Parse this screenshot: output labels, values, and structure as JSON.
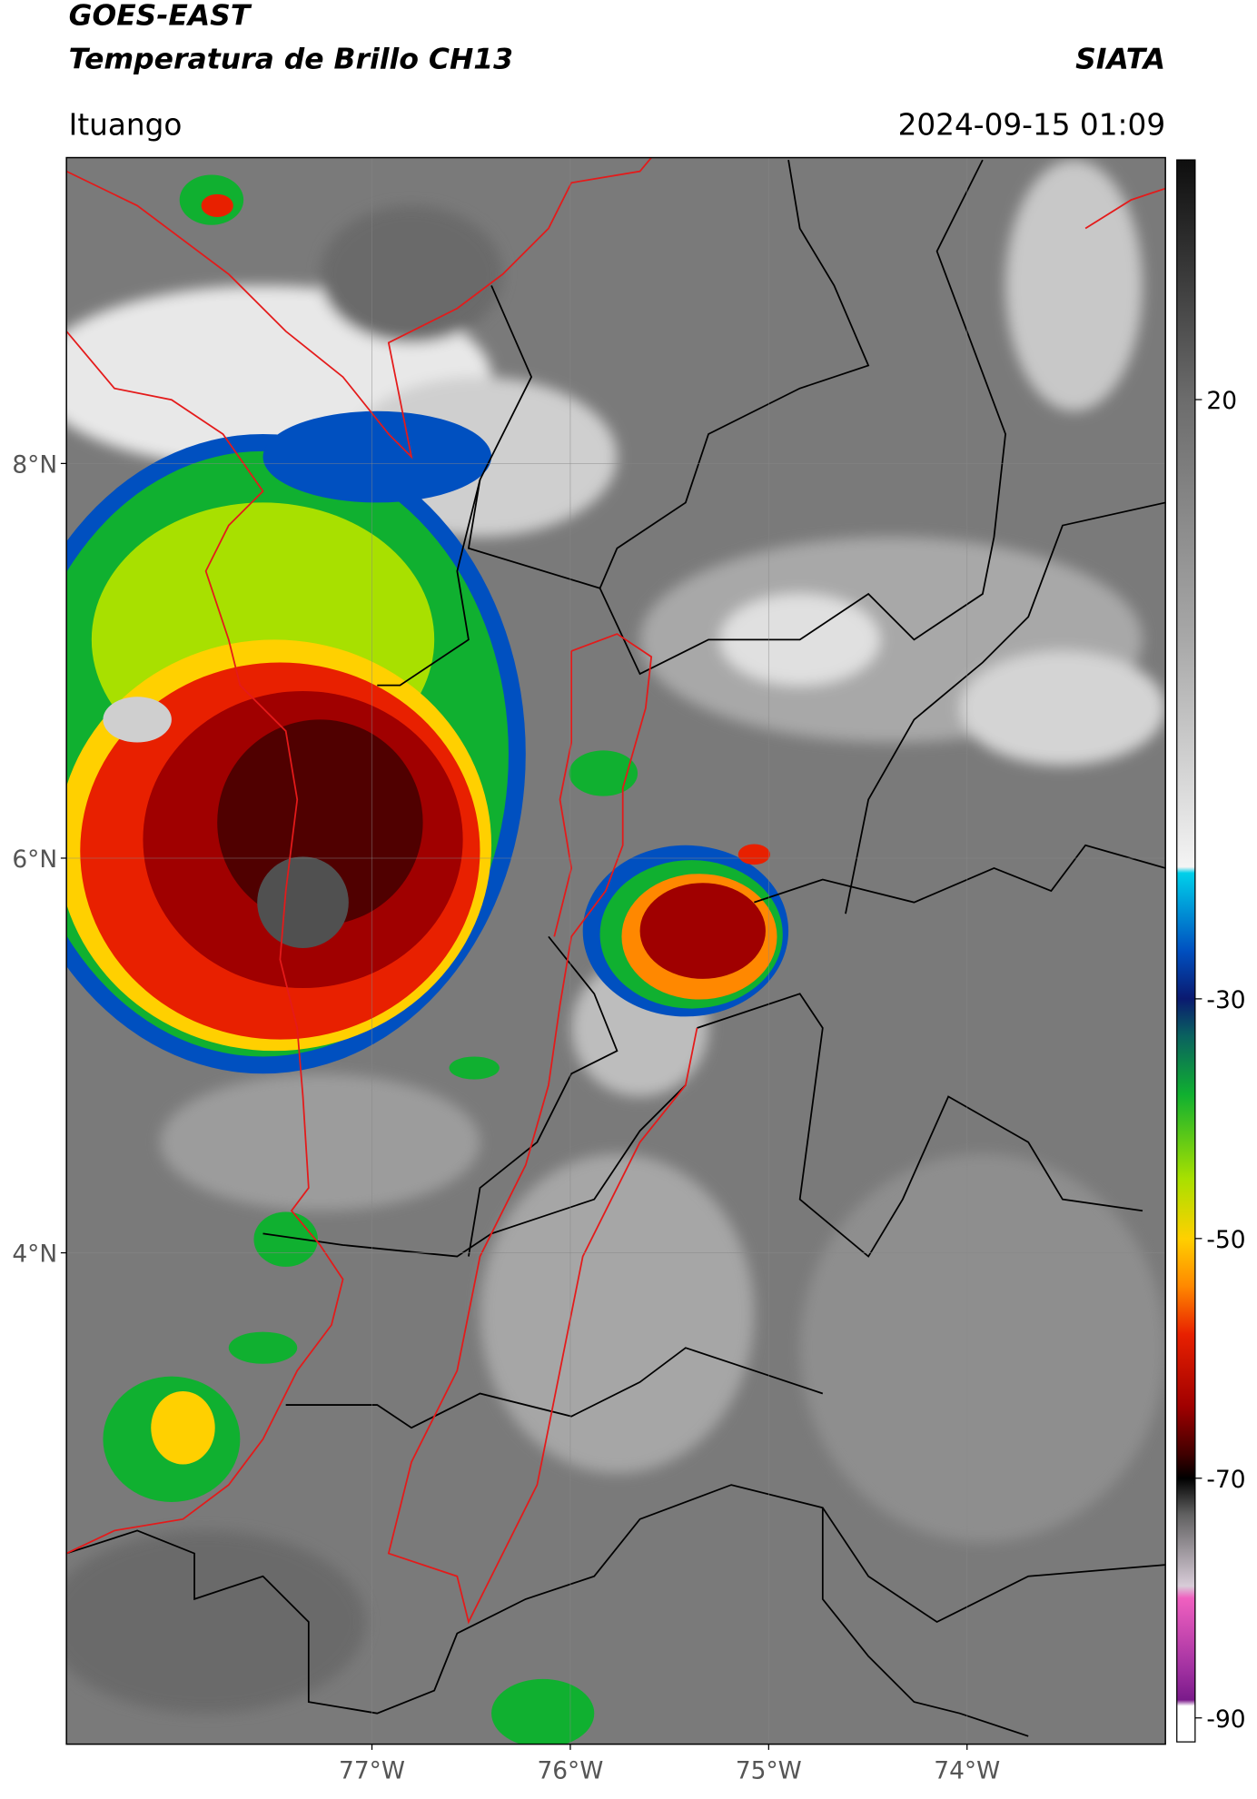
{
  "header": {
    "title_line1": "GOES-EAST",
    "title_line2": "Temperatura de Brillo CH13",
    "source": "SIATA",
    "region": "Ituango",
    "timestamp": "2024-09-15 01:09"
  },
  "map": {
    "lonlim": [
      -78.54,
      -73.0
    ],
    "latlim": [
      1.51,
      9.55
    ],
    "lon_ticks": [
      {
        "value": -77,
        "label": "77°W"
      },
      {
        "value": -76,
        "label": "76°W"
      },
      {
        "value": -75,
        "label": "75°W"
      },
      {
        "value": -74,
        "label": "74°W"
      }
    ],
    "lat_ticks": [
      {
        "value": 8,
        "label": "8°N"
      },
      {
        "value": 6,
        "label": "6°N"
      },
      {
        "value": 4,
        "label": "4°N"
      }
    ]
  },
  "colorbar": {
    "lim": [
      40,
      -92
    ],
    "ticks": [
      20,
      -30,
      -50,
      -70,
      -90
    ],
    "stops": [
      {
        "value": 40,
        "color": "#0e0e0e"
      },
      {
        "value": 30,
        "color": "#3c3c3c"
      },
      {
        "value": 20,
        "color": "#6c6c6c"
      },
      {
        "value": 0,
        "color": "#a8a8a8"
      },
      {
        "value": -19,
        "color": "#f4f4f4"
      },
      {
        "value": -19.5,
        "color": "#00d0ea"
      },
      {
        "value": -26,
        "color": "#0050c0"
      },
      {
        "value": -30,
        "color": "#0a1a70"
      },
      {
        "value": -33,
        "color": "#0a6060"
      },
      {
        "value": -38,
        "color": "#10b030"
      },
      {
        "value": -45,
        "color": "#a8e000"
      },
      {
        "value": -50,
        "color": "#ffd000"
      },
      {
        "value": -54,
        "color": "#ff8800"
      },
      {
        "value": -58,
        "color": "#e82000"
      },
      {
        "value": -64,
        "color": "#a00000"
      },
      {
        "value": -68,
        "color": "#400000"
      },
      {
        "value": -70,
        "color": "#000000"
      },
      {
        "value": -73,
        "color": "#606060"
      },
      {
        "value": -79,
        "color": "#d8ccd8"
      },
      {
        "value": -80,
        "color": "#f060c0"
      },
      {
        "value": -86,
        "color": "#a030a0"
      },
      {
        "value": -88.5,
        "color": "#7a1a8a"
      },
      {
        "value": -89,
        "color": "#ffffff"
      },
      {
        "value": -92,
        "color": "#ffffff"
      }
    ]
  }
}
